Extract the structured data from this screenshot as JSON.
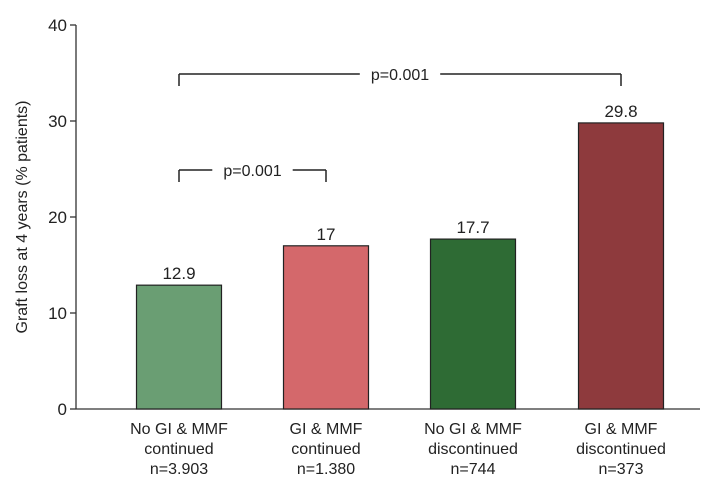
{
  "chart_data": {
    "type": "bar",
    "title": "",
    "ylabel": "Graft loss at 4 years (% patients)",
    "xlabel": "",
    "ylim": [
      0,
      40
    ],
    "yticks": [
      0,
      10,
      20,
      30,
      40
    ],
    "grid": false,
    "categories": [
      [
        "No GI & MMF",
        "continued",
        "n=3.903"
      ],
      [
        "GI & MMF",
        "continued",
        "n=1.380"
      ],
      [
        "No GI & MMF",
        "discontinued",
        "n=744"
      ],
      [
        "GI & MMF",
        "discontinued",
        "n=373"
      ]
    ],
    "values": [
      12.9,
      17,
      17.7,
      29.8
    ],
    "data_labels": [
      "12.9",
      "17",
      "17.7",
      "29.8"
    ],
    "bar_colors": [
      "#6a9e73",
      "#d4686b",
      "#2e6b34",
      "#8e3a3d"
    ],
    "significance": [
      {
        "from": 0,
        "to": 1,
        "label": "p=0.001"
      },
      {
        "from": 0,
        "to": 3,
        "label": "p=0.001"
      }
    ]
  }
}
